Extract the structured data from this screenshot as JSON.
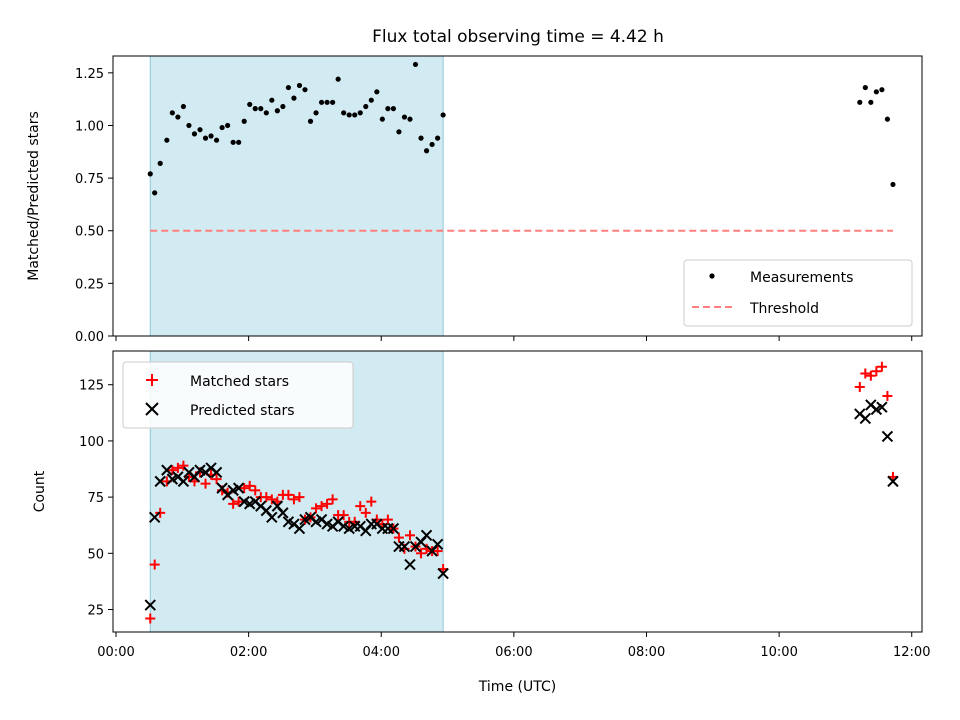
{
  "chart_data": [
    {
      "type": "scatter",
      "title": "Flux total observing time = 4.42 h",
      "xlabel": "",
      "ylabel": "Matched/Predicted stars",
      "xlim": [
        "00:00",
        "12:00"
      ],
      "ylim": [
        0,
        1.33
      ],
      "yticks": [
        "0.00",
        "0.25",
        "0.50",
        "0.75",
        "1.00",
        "1.25"
      ],
      "shaded_span": [
        "00:31",
        "04:56"
      ],
      "shaded_color": "#add8e6",
      "legend_position": "lower-right",
      "series": [
        {
          "name": "Measurements",
          "marker": "dot",
          "color": "#000000",
          "x": [
            "00:31",
            "00:35",
            "00:40",
            "00:46",
            "00:51",
            "00:56",
            "01:01",
            "01:06",
            "01:11",
            "01:16",
            "01:21",
            "01:26",
            "01:31",
            "01:36",
            "01:41",
            "01:46",
            "01:51",
            "01:56",
            "02:01",
            "02:06",
            "02:11",
            "02:16",
            "02:21",
            "02:26",
            "02:31",
            "02:36",
            "02:41",
            "02:46",
            "02:51",
            "02:56",
            "03:01",
            "03:06",
            "03:11",
            "03:16",
            "03:21",
            "03:26",
            "03:31",
            "03:36",
            "03:41",
            "03:46",
            "03:51",
            "03:56",
            "04:01",
            "04:06",
            "04:11",
            "04:16",
            "04:21",
            "04:26",
            "04:31",
            "04:36",
            "04:41",
            "04:46",
            "04:51",
            "04:56",
            "11:13",
            "11:18",
            "11:23",
            "11:28",
            "11:33",
            "11:38",
            "11:43"
          ],
          "y": [
            0.77,
            0.68,
            0.82,
            0.93,
            1.06,
            1.04,
            1.09,
            1.0,
            0.96,
            0.98,
            0.94,
            0.95,
            0.93,
            0.99,
            1.0,
            0.92,
            0.92,
            1.02,
            1.1,
            1.08,
            1.08,
            1.06,
            1.12,
            1.07,
            1.09,
            1.18,
            1.13,
            1.19,
            1.17,
            1.02,
            1.06,
            1.11,
            1.11,
            1.11,
            1.22,
            1.06,
            1.05,
            1.05,
            1.06,
            1.09,
            1.12,
            1.16,
            1.03,
            1.08,
            1.08,
            0.97,
            1.04,
            1.03,
            1.29,
            0.94,
            0.88,
            0.91,
            0.94,
            1.05,
            1.11,
            1.18,
            1.11,
            1.16,
            1.17,
            1.03,
            0.72
          ]
        },
        {
          "name": "Threshold",
          "style": "dashed",
          "color": "#ff7f7f",
          "x": [
            "00:31",
            "11:43"
          ],
          "y": [
            0.5,
            0.5
          ]
        }
      ]
    },
    {
      "type": "scatter",
      "title": "",
      "xlabel": "Time (UTC)",
      "ylabel": "Count",
      "xlim": [
        "00:00",
        "12:00"
      ],
      "xticks": [
        "00:00",
        "02:00",
        "04:00",
        "06:00",
        "08:00",
        "10:00",
        "12:00"
      ],
      "ylim": [
        15,
        140
      ],
      "yticks": [
        "25",
        "50",
        "75",
        "100",
        "125"
      ],
      "shaded_span": [
        "00:31",
        "04:56"
      ],
      "shaded_color": "#add8e6",
      "legend_position": "upper-left",
      "series": [
        {
          "name": "Matched stars",
          "marker": "plus",
          "color": "#ff0000",
          "x": [
            "00:31",
            "00:35",
            "00:40",
            "00:46",
            "00:51",
            "00:56",
            "01:01",
            "01:06",
            "01:11",
            "01:16",
            "01:21",
            "01:26",
            "01:31",
            "01:36",
            "01:41",
            "01:46",
            "01:51",
            "01:56",
            "02:01",
            "02:06",
            "02:11",
            "02:16",
            "02:21",
            "02:26",
            "02:31",
            "02:36",
            "02:41",
            "02:46",
            "02:51",
            "02:56",
            "03:01",
            "03:06",
            "03:11",
            "03:16",
            "03:21",
            "03:26",
            "03:31",
            "03:36",
            "03:41",
            "03:46",
            "03:51",
            "03:56",
            "04:01",
            "04:06",
            "04:11",
            "04:16",
            "04:21",
            "04:26",
            "04:31",
            "04:36",
            "04:41",
            "04:46",
            "04:51",
            "04:56",
            "11:13",
            "11:18",
            "11:23",
            "11:28",
            "11:33",
            "11:38",
            "11:43"
          ],
          "y": [
            21,
            45,
            68,
            82,
            87,
            88,
            89,
            84,
            82,
            86,
            81,
            85,
            83,
            78,
            77,
            72,
            73,
            79,
            80,
            78,
            75,
            75,
            74,
            73,
            76,
            76,
            74,
            75,
            65,
            66,
            70,
            71,
            72,
            74,
            67,
            67,
            64,
            64,
            71,
            68,
            73,
            65,
            63,
            65,
            61,
            57,
            52,
            58,
            53,
            50,
            52,
            51,
            51,
            43,
            124,
            130,
            129,
            131,
            133,
            120,
            84
          ]
        },
        {
          "name": "Predicted stars",
          "marker": "x",
          "color": "#000000",
          "x": [
            "00:31",
            "00:35",
            "00:40",
            "00:46",
            "00:51",
            "00:56",
            "01:01",
            "01:06",
            "01:11",
            "01:16",
            "01:21",
            "01:26",
            "01:31",
            "01:36",
            "01:41",
            "01:46",
            "01:51",
            "01:56",
            "02:01",
            "02:06",
            "02:11",
            "02:16",
            "02:21",
            "02:26",
            "02:31",
            "02:36",
            "02:41",
            "02:46",
            "02:51",
            "02:56",
            "03:01",
            "03:06",
            "03:11",
            "03:16",
            "03:21",
            "03:26",
            "03:31",
            "03:36",
            "03:41",
            "03:46",
            "03:51",
            "03:56",
            "04:01",
            "04:06",
            "04:11",
            "04:16",
            "04:21",
            "04:26",
            "04:31",
            "04:36",
            "04:41",
            "04:46",
            "04:51",
            "04:56",
            "11:13",
            "11:18",
            "11:23",
            "11:28",
            "11:33",
            "11:38",
            "11:43"
          ],
          "y": [
            27,
            66,
            82,
            87,
            83,
            84,
            82,
            86,
            84,
            87,
            86,
            88,
            86,
            79,
            76,
            78,
            79,
            73,
            72,
            73,
            71,
            69,
            66,
            71,
            68,
            64,
            63,
            61,
            65,
            66,
            64,
            65,
            63,
            62,
            64,
            62,
            61,
            62,
            62,
            60,
            63,
            63,
            61,
            61,
            61,
            53,
            53,
            45,
            53,
            55,
            58,
            51,
            54,
            41,
            112,
            110,
            116,
            114,
            115,
            102,
            82
          ]
        }
      ]
    }
  ]
}
